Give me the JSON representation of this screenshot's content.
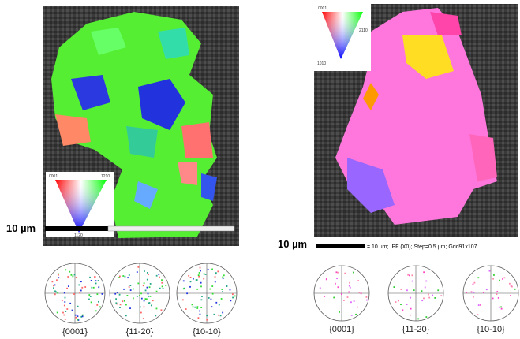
{
  "panels": [
    {
      "scale_bar": "10 µm",
      "ipf_key": [
        "0001",
        "1210",
        "1120"
      ],
      "pole_figures": [
        "{0001}",
        "{11-20}",
        "{10-10}"
      ]
    },
    {
      "scale_bar": "10 µm",
      "scale_caption": "= 10 µm; IPF (X0); Step=0.5 µm; Grid91x107",
      "ipf_key": [
        "0001",
        "2110",
        "1010"
      ],
      "pole_figures": [
        "{0001}",
        "{11-20}",
        "{10-10}"
      ]
    }
  ]
}
